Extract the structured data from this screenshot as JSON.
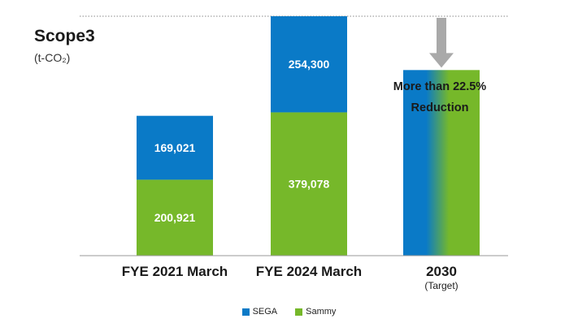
{
  "chart_data": {
    "type": "bar",
    "stacked": true,
    "title": "Scope3",
    "unit": "(t-CO₂)",
    "categories": [
      {
        "label": "FYE 2021 March",
        "sublabel": ""
      },
      {
        "label": "FYE 2024 March",
        "sublabel": ""
      },
      {
        "label": "2030",
        "sublabel": "(Target)"
      }
    ],
    "series": [
      {
        "name": "Sammy",
        "color": "#76b82a",
        "values": [
          200921,
          379078,
          null
        ],
        "labels": [
          "200,921",
          "379,078",
          ""
        ]
      },
      {
        "name": "SEGA",
        "color": "#0a7ac7",
        "values": [
          169021,
          254300,
          null
        ],
        "labels": [
          "169,021",
          "254,300",
          ""
        ]
      }
    ],
    "target": {
      "category": "2030",
      "value": 491000,
      "annotation_line1": "More than 22.5%",
      "annotation_line2": "Reduction"
    },
    "reference_line": {
      "value": 633378,
      "style": "dotted"
    },
    "ylim": [
      0,
      633378
    ],
    "legend": {
      "position": "bottom-center",
      "order": [
        "SEGA",
        "Sammy"
      ]
    },
    "grid": false
  }
}
